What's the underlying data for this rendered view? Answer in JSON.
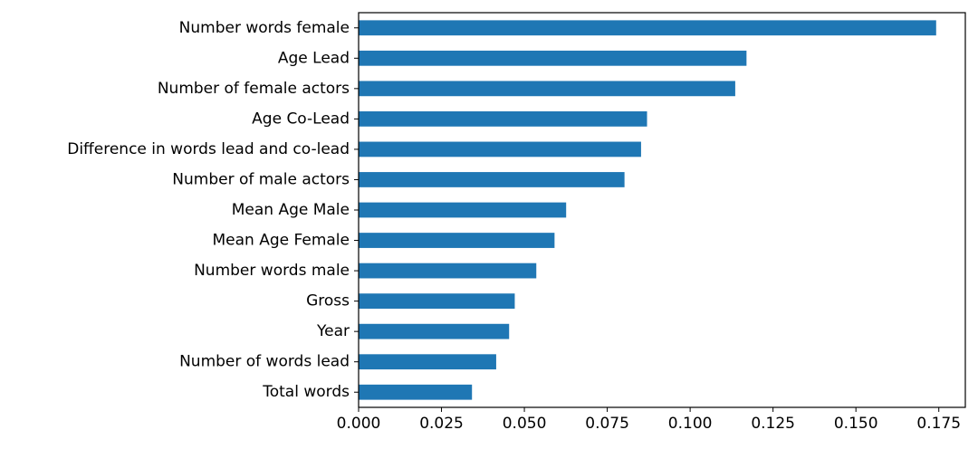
{
  "chart_data": {
    "type": "bar",
    "orientation": "horizontal",
    "title": "",
    "xlabel": "",
    "ylabel": "",
    "categories": [
      "Number words female",
      "Age Lead",
      "Number of female actors",
      "Age Co-Lead",
      "Difference in words lead and co-lead",
      "Number of male actors",
      "Mean Age Male",
      "Mean Age Female",
      "Number words male",
      "Gross",
      "Year",
      "Number of words lead",
      "Total words"
    ],
    "values": [
      0.1742,
      0.117,
      0.1136,
      0.087,
      0.0852,
      0.0802,
      0.0626,
      0.0591,
      0.0536,
      0.0471,
      0.0454,
      0.0415,
      0.0342
    ],
    "xlim": [
      0,
      0.183
    ],
    "xticks": [
      0.0,
      0.025,
      0.05,
      0.075,
      0.1,
      0.125,
      0.15,
      0.175
    ],
    "xtick_labels": [
      "0.000",
      "0.025",
      "0.050",
      "0.075",
      "0.100",
      "0.125",
      "0.150",
      "0.175"
    ],
    "grid": false,
    "legend": "none",
    "bar_color": "#1f77b4"
  }
}
